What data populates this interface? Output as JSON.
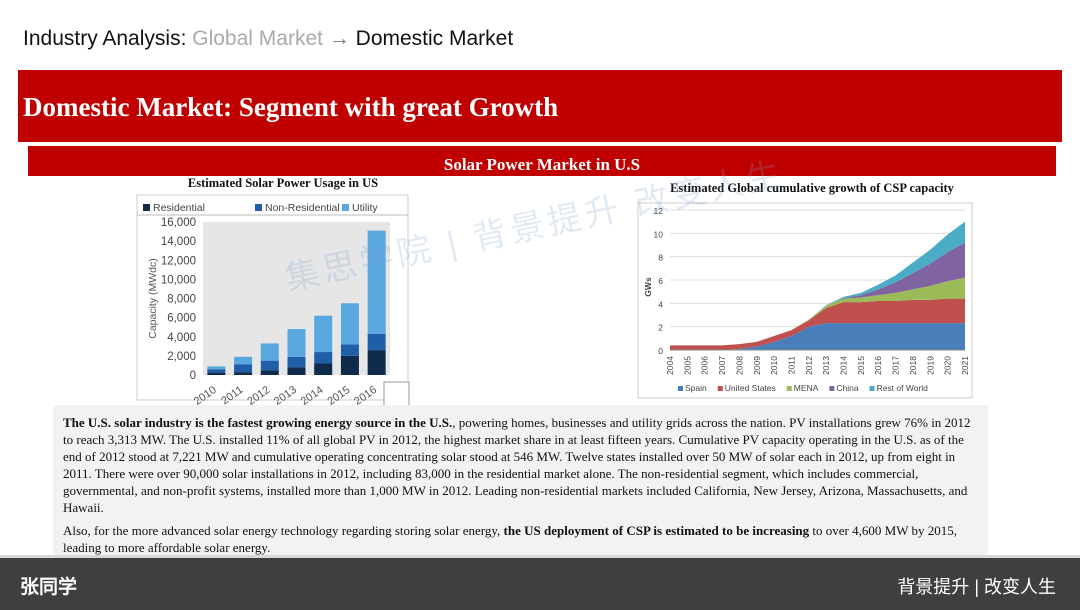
{
  "header": {
    "prefix": "Industry Analysis:",
    "previous": "Global Market",
    "arrow": "→",
    "current": "Domestic Market"
  },
  "banner": {
    "title": "Domestic Market: Segment with great Growth",
    "subtitle": "Solar Power Market in U.S"
  },
  "left_chart": {
    "type": "bar",
    "stacked": true,
    "grid": false,
    "title": "Estimated Solar Power Usage in US",
    "y_label": "Capacity (MWdc)",
    "categories": [
      "2010",
      "2011",
      "2012",
      "2013",
      "2014",
      "2015",
      "2016"
    ],
    "series": [
      {
        "name": "Residential",
        "color": "#0f2a4a",
        "values": [
          250,
          300,
          500,
          800,
          1200,
          2000,
          2600
        ]
      },
      {
        "name": "Non-Residential",
        "color": "#1f5fa8",
        "values": [
          350,
          800,
          1000,
          1100,
          1200,
          1200,
          1700
        ]
      },
      {
        "name": "Utility",
        "color": "#5aa6de",
        "values": [
          300,
          800,
          1800,
          2900,
          3800,
          4300,
          10800
        ]
      }
    ],
    "ylim": [
      0,
      16000
    ],
    "yticks": [
      0,
      {
        "value": 2000,
        "label": "2,000"
      },
      {
        "value": 4000,
        "label": "4,000"
      },
      {
        "value": 6000,
        "label": "6,000"
      },
      {
        "value": 8000,
        "label": "8,000"
      },
      {
        "value": 10000,
        "label": "10,000"
      },
      {
        "value": 12000,
        "label": "12,000"
      },
      {
        "value": 14000,
        "label": "14,000"
      },
      {
        "value": 16000,
        "label": "16,000"
      }
    ]
  },
  "right_chart": {
    "type": "area",
    "stacked": true,
    "grid": true,
    "title": "Estimated Global cumulative growth of CSP capacity",
    "y_label": "GWs",
    "categories": [
      "2004",
      "2005",
      "2006",
      "2007",
      "2008",
      "2009",
      "2010",
      "2011",
      "2012",
      "2013",
      "2014",
      "2015",
      "2016",
      "2017",
      "2018",
      "2019",
      "2020",
      "2021"
    ],
    "series": [
      {
        "name": "Spain",
        "color": "#4a7ebb",
        "values": [
          0,
          0,
          0,
          0,
          0.1,
          0.3,
          0.7,
          1.2,
          2.0,
          2.3,
          2.3,
          2.3,
          2.3,
          2.3,
          2.3,
          2.3,
          2.3,
          2.3
        ]
      },
      {
        "name": "United States",
        "color": "#c0504d",
        "values": [
          0.4,
          0.4,
          0.4,
          0.4,
          0.4,
          0.4,
          0.5,
          0.5,
          0.55,
          1.3,
          1.8,
          1.8,
          1.9,
          1.9,
          2.0,
          2.0,
          2.1,
          2.1
        ]
      },
      {
        "name": "MENA",
        "color": "#9bbb59",
        "values": [
          0,
          0,
          0,
          0,
          0,
          0,
          0,
          0,
          0.05,
          0.2,
          0.3,
          0.4,
          0.5,
          0.7,
          0.9,
          1.2,
          1.5,
          1.8
        ]
      },
      {
        "name": "China",
        "color": "#8064a2",
        "values": [
          0,
          0,
          0,
          0,
          0,
          0,
          0,
          0,
          0,
          0,
          0.05,
          0.2,
          0.5,
          0.9,
          1.4,
          1.9,
          2.5,
          3.0
        ]
      },
      {
        "name": "Rest of World",
        "color": "#4bacc6",
        "values": [
          0,
          0,
          0,
          0,
          0,
          0,
          0,
          0,
          0,
          0.05,
          0.1,
          0.2,
          0.4,
          0.6,
          0.9,
          1.2,
          1.5,
          1.8
        ]
      }
    ],
    "ylim": [
      0,
      12
    ],
    "yticks": [
      0,
      2,
      4,
      6,
      8,
      10,
      12
    ]
  },
  "body": {
    "paragraphs": [
      [
        {
          "text": "The U.S. solar industry is the fastest growing energy source in the U.S.",
          "bold": true
        },
        {
          "text": ", powering homes, businesses and utility grids across the nation. PV installations grew 76% in 2012 to reach 3,313 MW. The U.S. installed 11% of all global PV in 2012, the highest market share in at least fifteen years. Cumulative PV capacity operating in the U.S. as of the end of 2012 stood at 7,221 MW and cumulative operating concentrating solar stood at 546 MW. Twelve states installed over 50 MW of solar each in 2012, up from eight in 2011. There were over 90,000 solar installations in 2012, including 83,000 in the residential market alone. The non-residential segment, which includes commercial, governmental, and non-profit systems, installed more than 1,000 MW in 2012. Leading non-residential markets included California, New Jersey, Arizona, Massachusetts, and Hawaii.",
          "bold": false
        }
      ],
      [
        {
          "text": "Also, for the more advanced solar energy technology regarding storing solar energy, ",
          "bold": false
        },
        {
          "text": "the US deployment of CSP is estimated to be increasing",
          "bold": true
        },
        {
          "text": " to over 4,600 MW by 2015, leading to more affordable solar energy.",
          "bold": false
        }
      ]
    ]
  },
  "watermark": {
    "brand": "集思学院",
    "slogan": "背景提升 改变人生"
  },
  "footer": {
    "left": "张同学",
    "right": "背景提升 | 改变人生"
  }
}
